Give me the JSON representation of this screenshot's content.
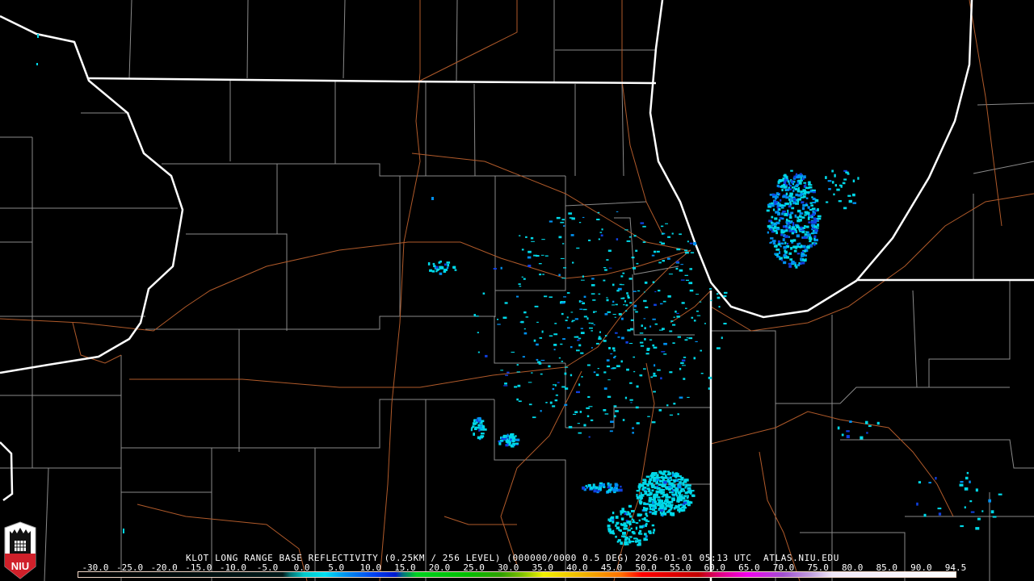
{
  "product": {
    "title": "KLOT LONG RANGE BASE REFLECTIVITY (0.25KM / 256 LEVEL) (000000/0000 0.5 DEG) 2026-01-01 05:13 UTC  ATLAS.NIU.EDU",
    "radar_site": "KLOT",
    "elevation_angle": "0.5 DEG",
    "timestamp": "2026-01-01 05:13 UTC",
    "source": "ATLAS.NIU.EDU"
  },
  "logo": {
    "text": "NIU",
    "color": "#d0202a"
  },
  "color_scale": {
    "labels": [
      "-30.0",
      "-25.0",
      "-20.0",
      "-15.0",
      "-10.0",
      "-5.0",
      "0.0",
      "5.0",
      "10.0",
      "15.0",
      "20.0",
      "25.0",
      "30.0",
      "35.0",
      "40.0",
      "45.0",
      "50.0",
      "55.0",
      "60.0",
      "65.0",
      "70.0",
      "75.0",
      "80.0",
      "85.0",
      "90.0",
      "94.5"
    ],
    "min": -30.0,
    "max": 94.5,
    "stops": [
      {
        "value": -30,
        "color": "#000000"
      },
      {
        "value": -1,
        "color": "#001a1a"
      },
      {
        "value": 0,
        "color": "#007070"
      },
      {
        "value": 2,
        "color": "#00c8c8"
      },
      {
        "value": 5,
        "color": "#00e0f0"
      },
      {
        "value": 8,
        "color": "#0090f0"
      },
      {
        "value": 12,
        "color": "#0040f0"
      },
      {
        "value": 15,
        "color": "#0018d0"
      },
      {
        "value": 16,
        "color": "#007080"
      },
      {
        "value": 18,
        "color": "#00d020"
      },
      {
        "value": 25,
        "color": "#00c000"
      },
      {
        "value": 30,
        "color": "#30a000"
      },
      {
        "value": 33,
        "color": "#80c000"
      },
      {
        "value": 36,
        "color": "#f0f000"
      },
      {
        "value": 42,
        "color": "#f0b000"
      },
      {
        "value": 47,
        "color": "#ff7000"
      },
      {
        "value": 50,
        "color": "#ff0000"
      },
      {
        "value": 58,
        "color": "#c00000"
      },
      {
        "value": 61,
        "color": "#e00080"
      },
      {
        "value": 65,
        "color": "#f000f0"
      },
      {
        "value": 70,
        "color": "#a050d0"
      },
      {
        "value": 74,
        "color": "#c0a0e0"
      },
      {
        "value": 77,
        "color": "#f0e8f8"
      },
      {
        "value": 94.5,
        "color": "#ffffff"
      }
    ]
  },
  "map_colors": {
    "state_border": "#ffffff",
    "county_border": "#8a8a8a",
    "highway": "#b05a2a",
    "echo_light": "#00d8e8",
    "echo_medium": "#0090f0",
    "echo_heavy": "#1040e0"
  }
}
